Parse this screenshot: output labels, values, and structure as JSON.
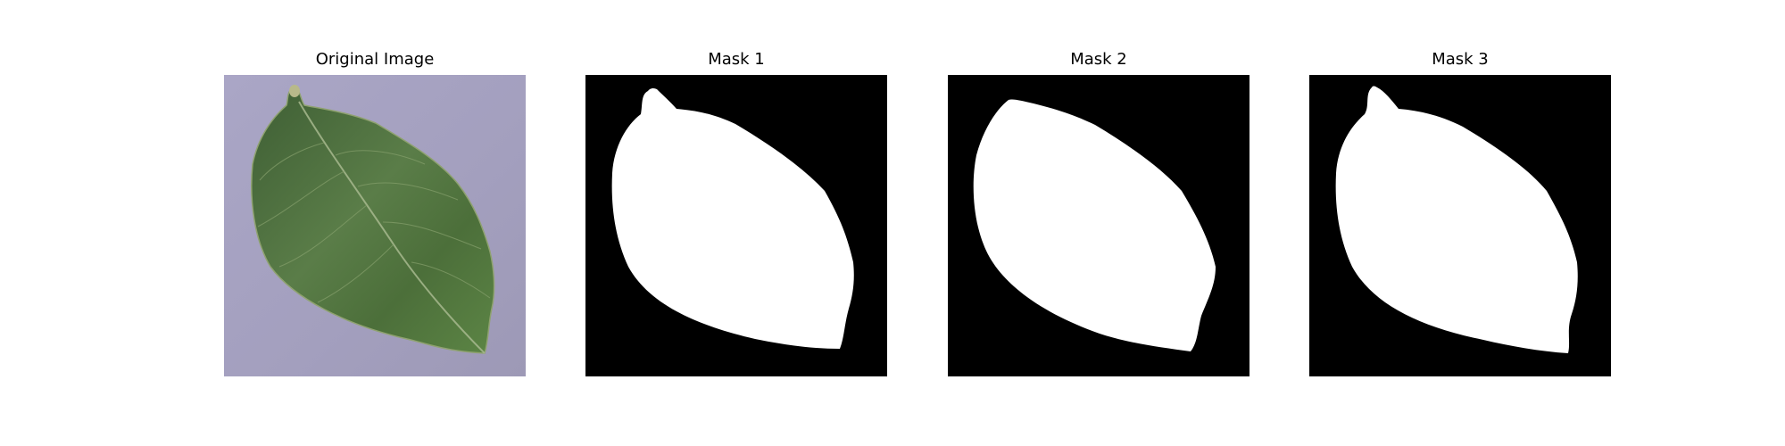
{
  "figure": {
    "panels": [
      {
        "title": "Original Image",
        "content": "leaf-photo"
      },
      {
        "title": "Mask 1",
        "content": "binary-mask"
      },
      {
        "title": "Mask 2",
        "content": "binary-mask"
      },
      {
        "title": "Mask 3",
        "content": "binary-mask"
      }
    ]
  },
  "colors": {
    "background": "#ffffff",
    "mask_foreground": "#ffffff",
    "mask_background": "#000000",
    "photo_background": "#a7a3c2",
    "leaf": "#4d6f3c"
  }
}
